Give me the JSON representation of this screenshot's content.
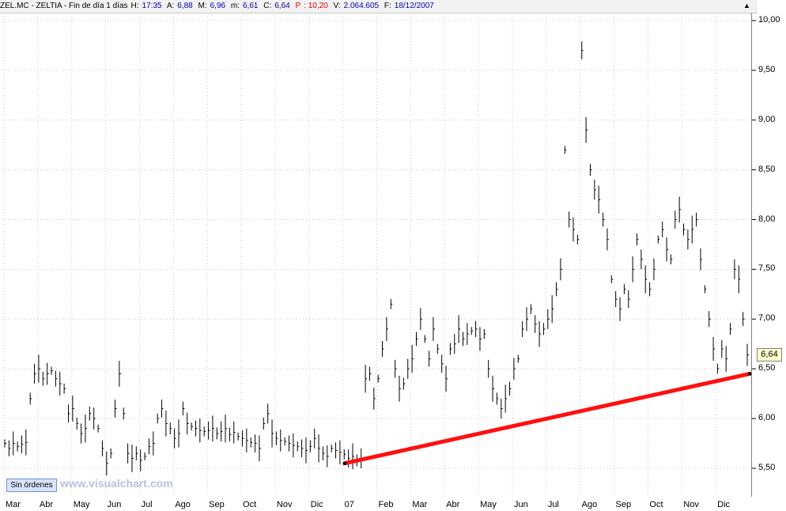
{
  "header": {
    "symbol": "ZEL.MC - ZELTIA - Fin de día 1 días",
    "h_label": "H:",
    "h_value": "17:35",
    "a_label": "A:",
    "a_value": "6,88",
    "m_label": "M:",
    "m_value": "6,96",
    "mm_label": "m:",
    "mm_value": "6,61",
    "c_label": "C:",
    "c_value": "6,64",
    "p_label": "P",
    "p_value": ": 10,20",
    "v_label": "V:",
    "v_value": "2.064.605",
    "f_label": "F:",
    "f_value": "18/12/2007"
  },
  "toolbar": {
    "up_arrow": "▲"
  },
  "orders_button_label": "Sin órdenes",
  "watermark": "www.visualchart.com",
  "price_tag": "6,64",
  "chart_data": {
    "type": "bar",
    "y_ticks": [
      "10,00",
      "9,50",
      "9,00",
      "8,50",
      "8,00",
      "7,50",
      "7,00",
      "6,50",
      "6,00",
      "5,50"
    ],
    "ylim": [
      5.5,
      10.0
    ],
    "x_ticks": [
      "Mar",
      "Abr",
      "May",
      "Jun",
      "Jul",
      "Ago",
      "Sep",
      "Oct",
      "Nov",
      "Dic",
      "07",
      "Feb",
      "Mar",
      "Abr",
      "May",
      "Jun",
      "Jul",
      "Ago",
      "Sep",
      "Oct",
      "Nov",
      "Dic"
    ],
    "series": [
      {
        "values": [
          [
            5.75,
            5.7,
            5.75,
            5.72,
            5.74,
            5.76,
            6.2,
            6.45,
            6.5,
            6.4,
            6.45,
            6.48,
            6.4,
            6.35,
            6.3,
            6.05,
            6.1,
            5.95,
            5.85,
            5.9,
            6.05,
            6.0,
            5.9,
            5.7,
            5.55,
            5.65,
            6.1,
            6.45,
            6.05,
            5.65,
            5.6,
            5.65,
            5.58,
            5.62,
            5.72,
            5.75,
            6.0,
            6.1,
            5.95,
            5.9,
            5.8,
            5.85,
            6.1,
            5.95,
            5.92,
            5.9,
            5.88,
            5.87,
            5.88,
            5.9,
            5.85,
            5.87,
            5.9,
            5.84,
            5.86,
            5.82,
            5.8,
            5.78,
            5.76,
            5.75,
            5.7,
            5.95,
            6.05,
            5.85,
            5.8,
            5.78,
            5.77,
            5.75,
            5.73,
            5.72,
            5.7,
            5.68,
            5.72,
            5.8,
            5.7,
            5.65,
            5.62,
            5.7,
            5.68,
            5.66,
            5.64,
            5.6,
            5.62,
            5.58,
            5.6,
            6.4,
            6.45,
            6.2,
            6.4,
            6.7,
            6.9,
            7.15,
            6.5,
            6.3,
            6.35,
            6.5,
            6.6,
            6.8,
            7.0,
            6.8,
            6.6,
            6.9,
            6.7,
            6.55,
            6.4,
            6.7,
            6.75,
            6.9,
            6.8,
            6.85,
            6.88,
            6.9,
            6.8,
            6.85,
            6.5,
            6.3,
            6.2,
            6.1,
            6.2,
            6.3,
            6.5,
            6.6,
            6.9,
            7.0,
            7.1,
            6.95,
            6.85,
            6.9,
            7.0,
            7.1,
            7.3,
            7.5,
            8.7,
            8.0,
            7.9,
            7.8,
            9.7,
            8.9,
            8.5,
            8.3,
            8.2,
            8.0,
            7.8,
            7.4,
            7.2,
            7.1,
            7.3,
            7.2,
            7.5,
            7.8,
            7.6,
            7.4,
            7.3,
            7.5,
            7.8,
            7.9,
            7.7,
            7.6,
            8.0,
            8.1,
            7.9,
            7.8,
            7.9,
            8.0,
            7.6,
            7.3,
            7.0,
            6.7,
            6.5,
            6.7,
            6.6,
            6.9,
            7.5,
            7.4,
            7.0,
            6.64
          ]
        ]
      }
    ],
    "trendline": {
      "start_value": 5.55,
      "end_value": 6.45
    }
  }
}
